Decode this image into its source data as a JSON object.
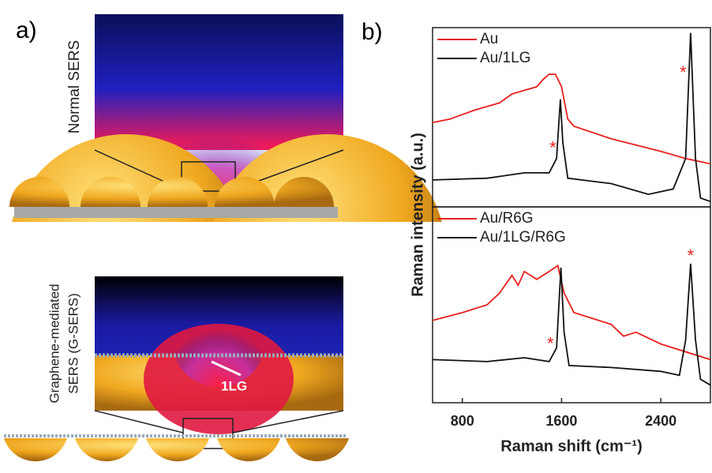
{
  "panel_a": {
    "label": "a)",
    "top_caption": "Normal  SERS",
    "bottom_caption_1": "Graphene-mediated",
    "bottom_caption_2": "SERS  (G-SERS)",
    "graphene_label": "1LG"
  },
  "panel_b": {
    "label": "b)"
  },
  "chart_data": [
    {
      "type": "line",
      "ylabel": "Raman intensity (a.u.)",
      "xlim": [
        560,
        2800
      ],
      "ylim": [
        0,
        100
      ],
      "legend": "upper left",
      "series": [
        {
          "name": "Au",
          "color": "#e8201c",
          "x": [
            560,
            700,
            900,
            1000,
            1100,
            1200,
            1300,
            1400,
            1450,
            1500,
            1550,
            1600,
            1650,
            1700,
            2000,
            2400,
            2600,
            2800
          ],
          "values": [
            47,
            49,
            54,
            56,
            58,
            63,
            65,
            67,
            71,
            74,
            74,
            67,
            49,
            45,
            38,
            31,
            27,
            24
          ]
        },
        {
          "name": "Au/1LG",
          "color": "#111111",
          "x": [
            560,
            1000,
            1300,
            1500,
            1560,
            1590,
            1610,
            1650,
            2000,
            2300,
            2500,
            2600,
            2640,
            2680,
            2720,
            2800
          ],
          "values": [
            15,
            16,
            19,
            19,
            27,
            60,
            36,
            16,
            13,
            7,
            10,
            27,
            97,
            27,
            5,
            3
          ]
        }
      ],
      "annotations": [
        {
          "text": "*",
          "x": 1530,
          "y": 35
        },
        {
          "text": "*",
          "x": 2580,
          "y": 77
        }
      ]
    },
    {
      "type": "line",
      "xlabel": "Raman shift (cm⁻¹)",
      "xlim": [
        560,
        2800
      ],
      "ylim": [
        0,
        100
      ],
      "xticks": [
        800,
        1600,
        2400
      ],
      "legend": "upper left",
      "series": [
        {
          "name": "Au/R6G",
          "color": "#e8201c",
          "x": [
            560,
            800,
            1000,
            1100,
            1200,
            1250,
            1300,
            1400,
            1500,
            1570,
            1620,
            1700,
            2000,
            2100,
            2200,
            2400,
            2800
          ],
          "values": [
            42,
            46,
            50,
            56,
            65,
            60,
            67,
            63,
            67,
            70,
            56,
            46,
            40,
            34,
            36,
            30,
            22
          ]
        },
        {
          "name": "Au/1LG/R6G",
          "color": "#111111",
          "x": [
            560,
            1000,
            1300,
            1500,
            1560,
            1595,
            1620,
            1660,
            2000,
            2400,
            2550,
            2600,
            2640,
            2680,
            2720,
            2800
          ],
          "values": [
            22,
            21,
            23,
            21,
            28,
            69,
            36,
            19,
            18,
            16,
            14,
            32,
            71,
            32,
            12,
            9
          ]
        }
      ],
      "annotations": [
        {
          "text": "*",
          "x": 1510,
          "y": 32
        },
        {
          "text": "*",
          "x": 2640,
          "y": 77
        }
      ]
    }
  ]
}
